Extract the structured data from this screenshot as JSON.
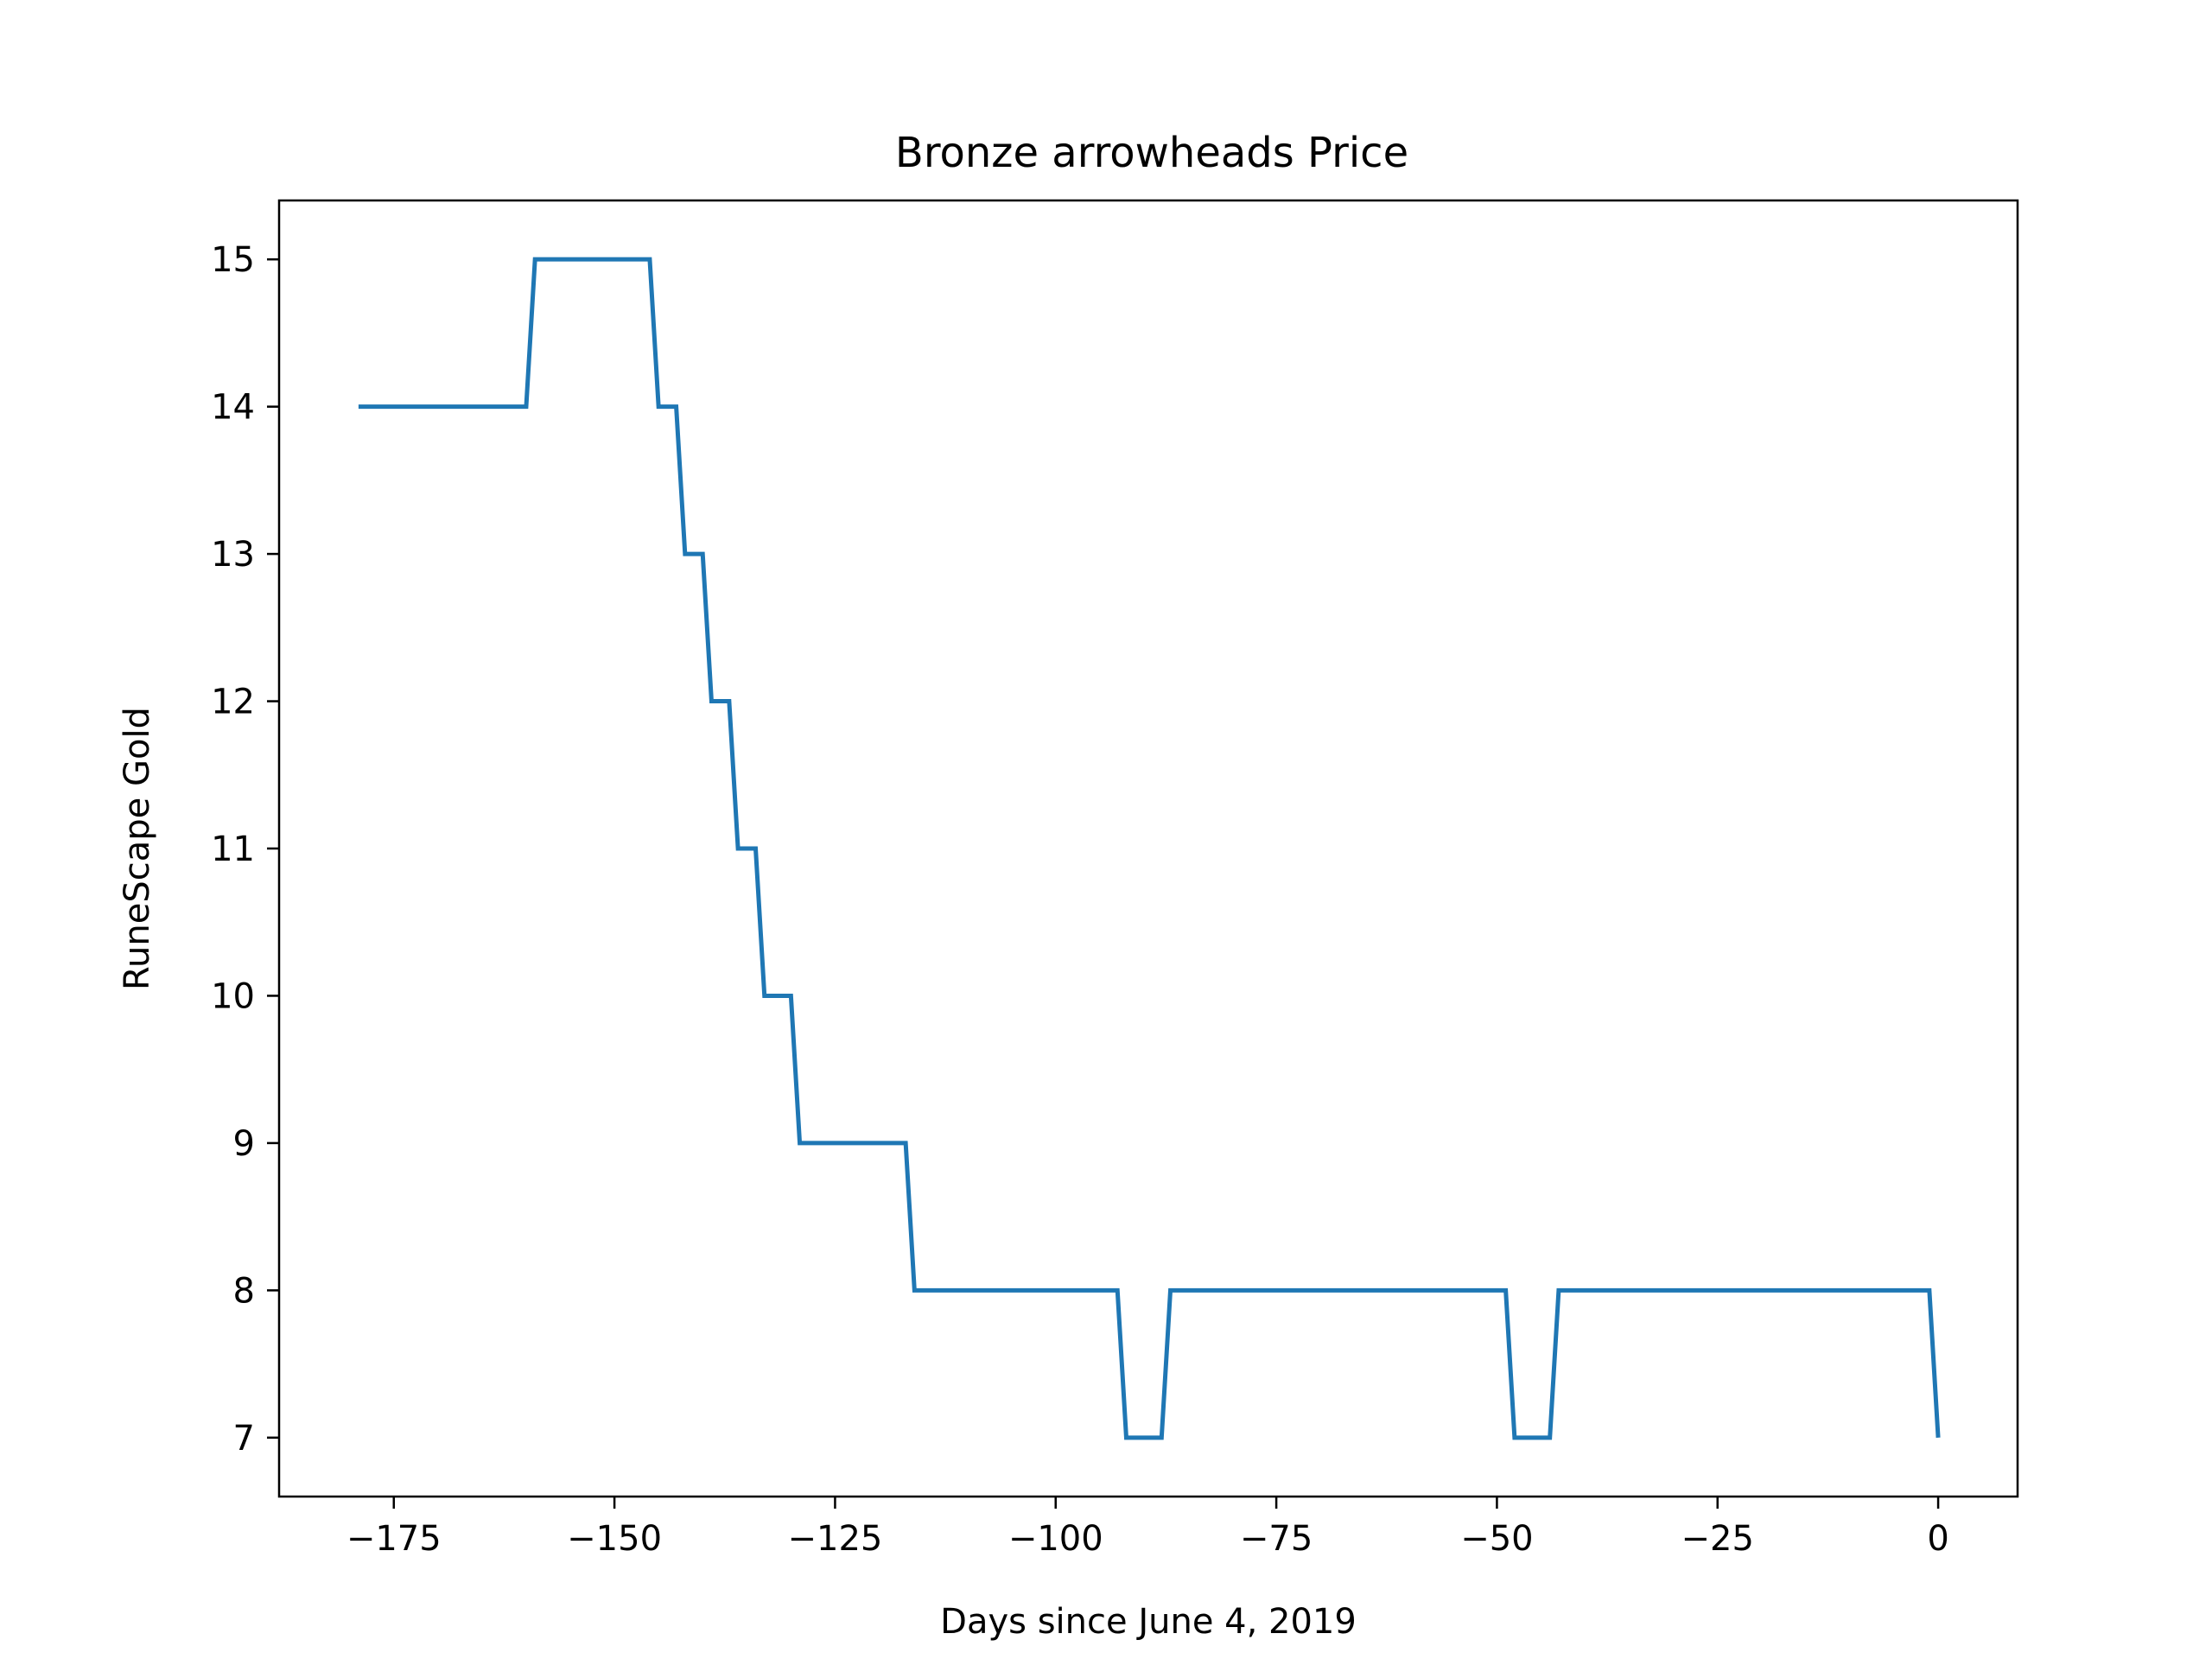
{
  "chart_data": {
    "type": "line",
    "title": "Bronze arrowheads Price",
    "xlabel": "Days since June 4, 2019",
    "ylabel": "RuneScape Gold",
    "xlim": [
      -188,
      9
    ],
    "ylim": [
      6.6,
      15.4
    ],
    "xticks": [
      -175,
      -150,
      -125,
      -100,
      -75,
      -50,
      -25,
      0
    ],
    "xtick_labels": [
      "−175",
      "−150",
      "−125",
      "−100",
      "−75",
      "−50",
      "−25",
      "0"
    ],
    "yticks": [
      7,
      8,
      9,
      10,
      11,
      12,
      13,
      14,
      15
    ],
    "ytick_labels": [
      "7",
      "8",
      "9",
      "10",
      "11",
      "12",
      "13",
      "14",
      "15"
    ],
    "grid": false,
    "series_color": "#1f77b4",
    "series": [
      {
        "x": [
          -179,
          -160,
          -159,
          -146,
          -145,
          -143,
          -142,
          -140,
          -139,
          -137,
          -136,
          -134,
          -133,
          -130,
          -129,
          -117,
          -116,
          -93,
          -92,
          -88,
          -87,
          -49,
          -48,
          -44,
          -43,
          -1,
          0
        ],
        "y": [
          14,
          14,
          15,
          15,
          14,
          14,
          13,
          13,
          12,
          12,
          11,
          11,
          10,
          10,
          9,
          9,
          8,
          8,
          7,
          7,
          8,
          8,
          7,
          7,
          8,
          8,
          7
        ]
      }
    ]
  }
}
